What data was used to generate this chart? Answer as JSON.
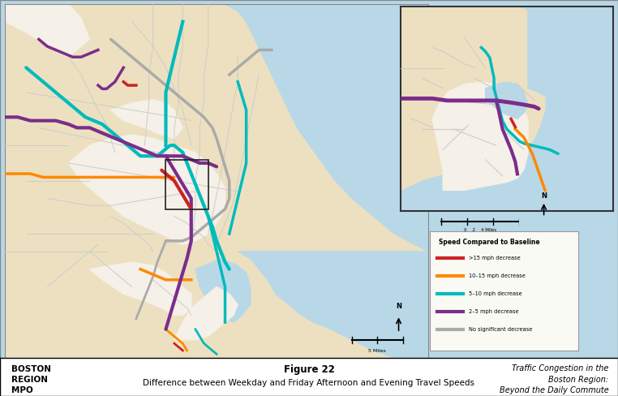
{
  "title_line1": "Figure 22",
  "title_line2": "Difference between Weekday and Friday Afternoon and Evening Travel Speeds",
  "left_label_line1": "BOSTON",
  "left_label_line2": "REGION",
  "left_label_line3": "MPO",
  "right_label_line1": "Traffic Congestion in the",
  "right_label_line2": "Boston Region:",
  "right_label_line3": "Beyond the Daily Commute",
  "legend_title": "Speed Compared to Baseline",
  "legend_items": [
    {
      "label": ">15 mph decrease",
      "color": "#CC2222"
    },
    {
      "label": "10–15 mph decrease",
      "color": "#FF8800"
    },
    {
      "label": "5–10 mph decrease",
      "color": "#00BBBB"
    },
    {
      "label": "2–5 mph decrease",
      "color": "#7B2D8B"
    },
    {
      "label": "No significant decrease",
      "color": "#AAAAAA"
    }
  ],
  "map_bg_color": "#B8D8E8",
  "land_color": "#EDE0C0",
  "urban_color": "#F5F0E8",
  "water_color": "#B8D8E8",
  "outer_bg": "#B8D8E8",
  "footer_bg": "#FFFFFF"
}
